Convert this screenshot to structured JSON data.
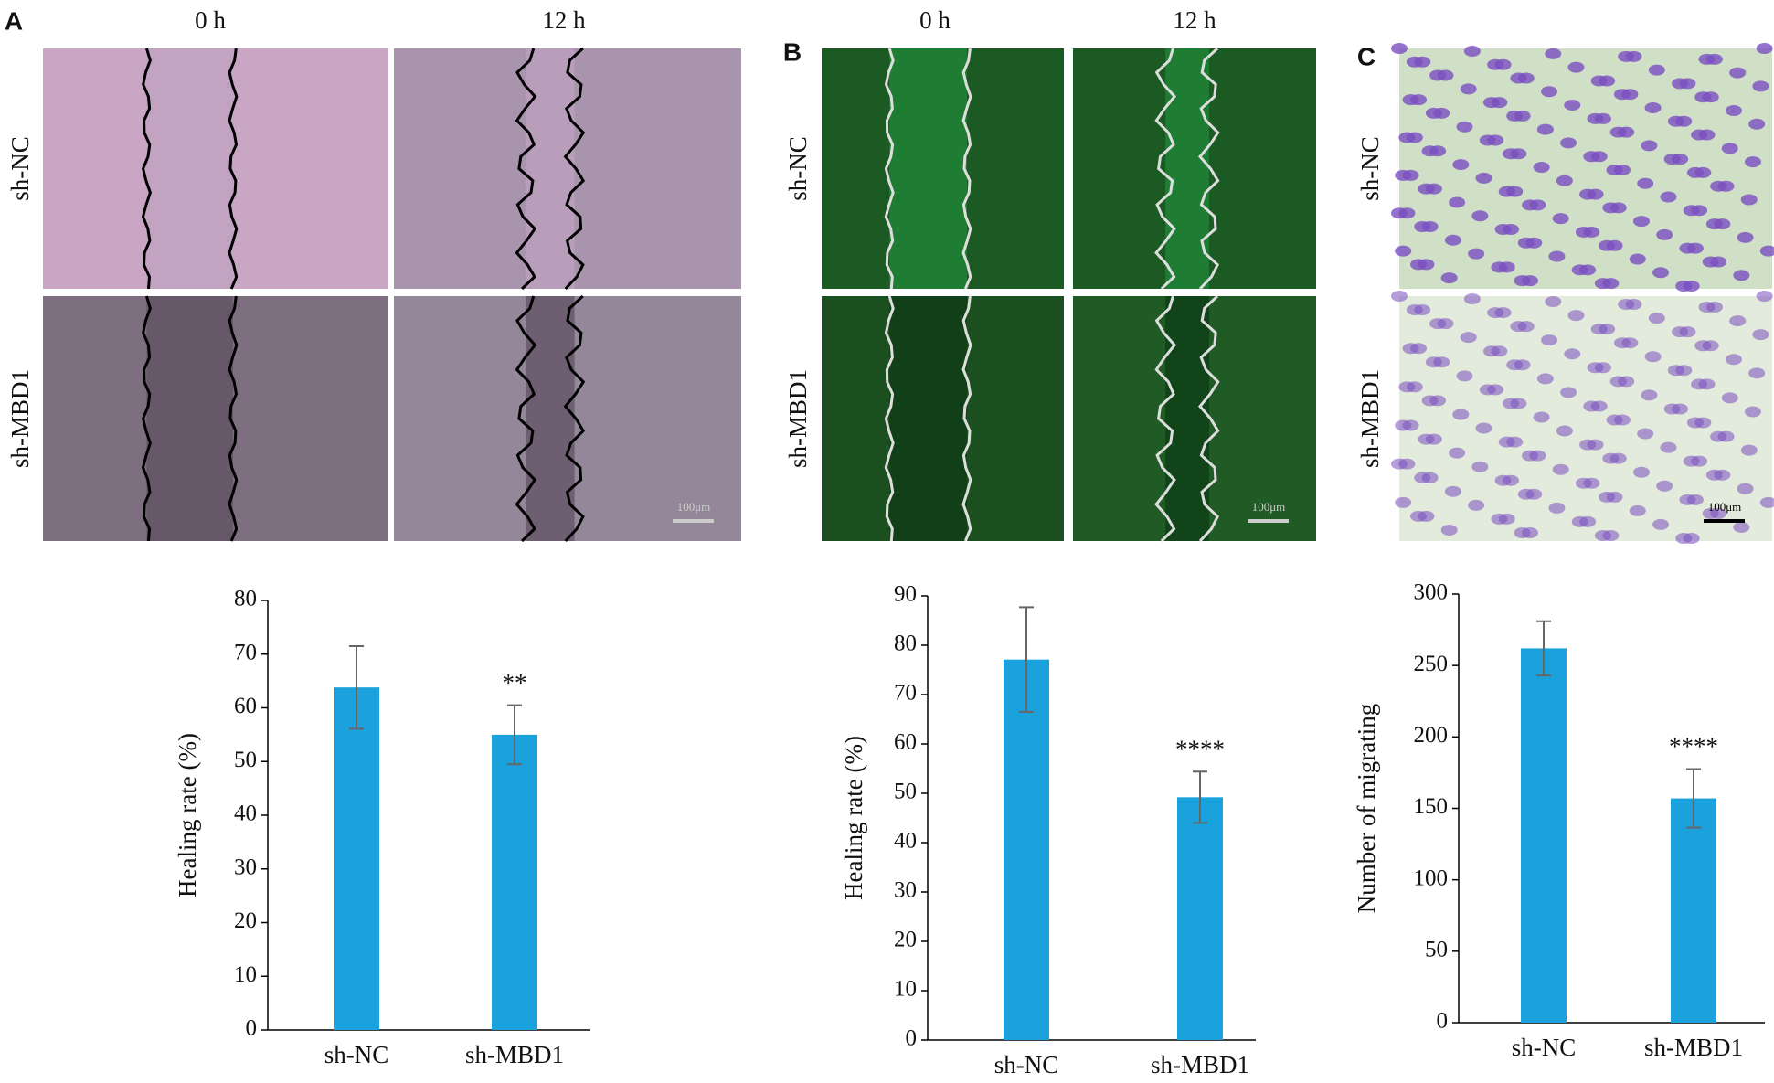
{
  "figure": {
    "panels": [
      {
        "letter": "A",
        "columns": [
          "0 h",
          "12 h"
        ],
        "rows": [
          "sh-NC",
          "sh-MBD1"
        ],
        "scale_bar": "100μm"
      },
      {
        "letter": "B",
        "columns": [
          "0 h",
          "12 h"
        ],
        "rows": [
          "sh-NC",
          "sh-MBD1"
        ],
        "scale_bar": "100μm"
      },
      {
        "letter": "C",
        "rows": [
          "sh-NC",
          "sh-MBD1"
        ],
        "scale_bar": "100μm"
      }
    ]
  },
  "chart_data": [
    {
      "type": "bar",
      "ylabel": "Healing rate (%)",
      "categories": [
        "sh-NC",
        "sh-MBD1"
      ],
      "values": [
        63.8,
        55
      ],
      "errors": [
        7.7,
        5.5
      ],
      "significance": [
        null,
        "**"
      ],
      "color": "#1ba1dc",
      "ylim": [
        0,
        80
      ],
      "yticks": [
        0,
        10,
        20,
        30,
        40,
        50,
        60,
        70,
        80
      ]
    },
    {
      "type": "bar",
      "ylabel": "Healing rate (%)",
      "categories": [
        "sh-NC",
        "sh-MBD1"
      ],
      "values": [
        77.1,
        49.2
      ],
      "errors": [
        10.6,
        5.2
      ],
      "significance": [
        null,
        "****"
      ],
      "color": "#1ba1dc",
      "ylim": [
        0,
        90
      ],
      "yticks": [
        0,
        10,
        20,
        30,
        40,
        50,
        60,
        70,
        80,
        90
      ]
    },
    {
      "type": "bar",
      "ylabel": "Number of migrating",
      "categories": [
        "sh-NC",
        "sh-MBD1"
      ],
      "values": [
        262,
        157
      ],
      "errors": [
        19,
        20.5
      ],
      "significance": [
        null,
        "****"
      ],
      "color": "#1ba1dc",
      "ylim": [
        0,
        300
      ],
      "yticks": [
        0,
        50,
        100,
        150,
        200,
        250,
        300
      ]
    }
  ]
}
